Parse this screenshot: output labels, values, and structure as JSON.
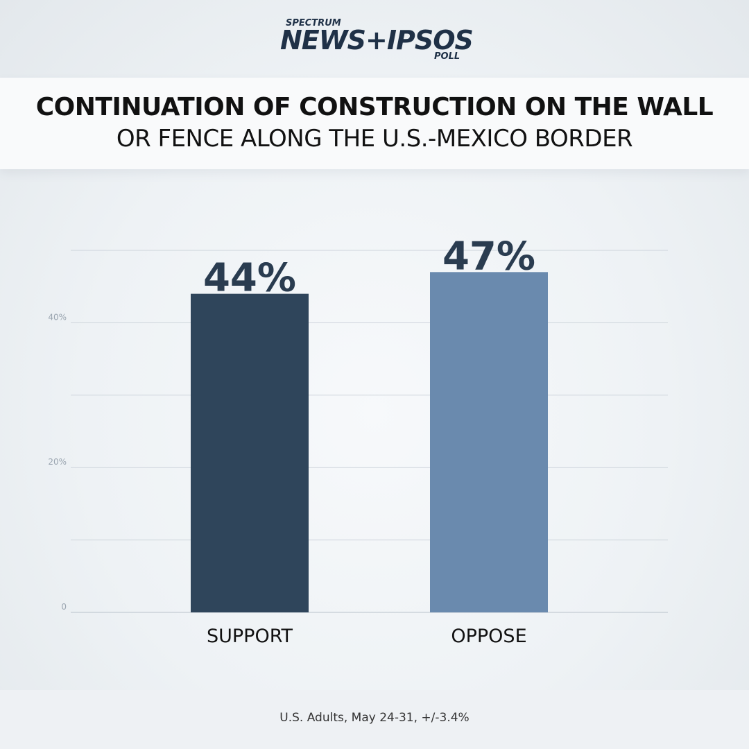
{
  "brand": {
    "top": "SPECTRUM",
    "main": "NEWS+IPSOS",
    "sub": "POLL"
  },
  "title": {
    "line1": "CONTINUATION OF CONSTRUCTION ON THE WALL",
    "line2": "OR FENCE ALONG THE U.S.-MEXICO BORDER"
  },
  "chart_data": {
    "type": "bar",
    "categories": [
      "SUPPORT",
      "OPPOSE"
    ],
    "values": [
      44,
      47
    ],
    "data_labels": [
      "44%",
      "47%"
    ],
    "colors": [
      "#2f455b",
      "#6a8aae"
    ],
    "ylim": [
      0,
      50
    ],
    "yticks": [
      0,
      20,
      40
    ],
    "ytick_labels": [
      "0",
      "20%",
      "40%"
    ],
    "gridlines": [
      0,
      10,
      20,
      30,
      40,
      50
    ],
    "grid": true,
    "legend": "none"
  },
  "footer": {
    "note": "U.S. Adults, May 24-31, +/-3.4%"
  }
}
